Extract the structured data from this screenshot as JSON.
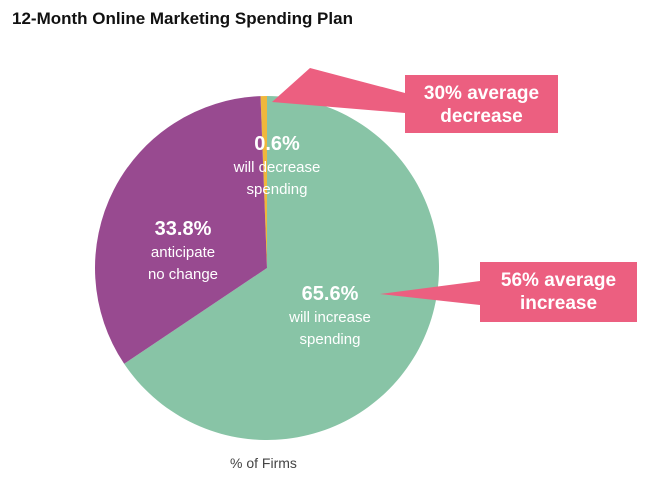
{
  "chart_data": {
    "type": "pie",
    "title": "12-Month Online Marketing Spending Plan",
    "caption": "% of Firms",
    "slices": [
      {
        "key": "decrease",
        "value": 0.6,
        "value_label": "0.6%",
        "desc_lines": [
          "will decrease",
          "spending"
        ],
        "color": "#f0b73c"
      },
      {
        "key": "increase",
        "value": 65.6,
        "value_label": "65.6%",
        "desc_lines": [
          "will increase",
          "spending"
        ],
        "color": "#88c4a6"
      },
      {
        "key": "no-change",
        "value": 33.8,
        "value_label": "33.8%",
        "desc_lines": [
          "anticipate",
          "no change"
        ],
        "color": "#984a90"
      }
    ],
    "callouts": [
      {
        "key": "decrease",
        "lines": [
          "30% average",
          "decrease"
        ],
        "color": "#ec5f80"
      },
      {
        "key": "increase",
        "lines": [
          "56% average",
          "increase"
        ],
        "color": "#ec5f80"
      }
    ]
  }
}
